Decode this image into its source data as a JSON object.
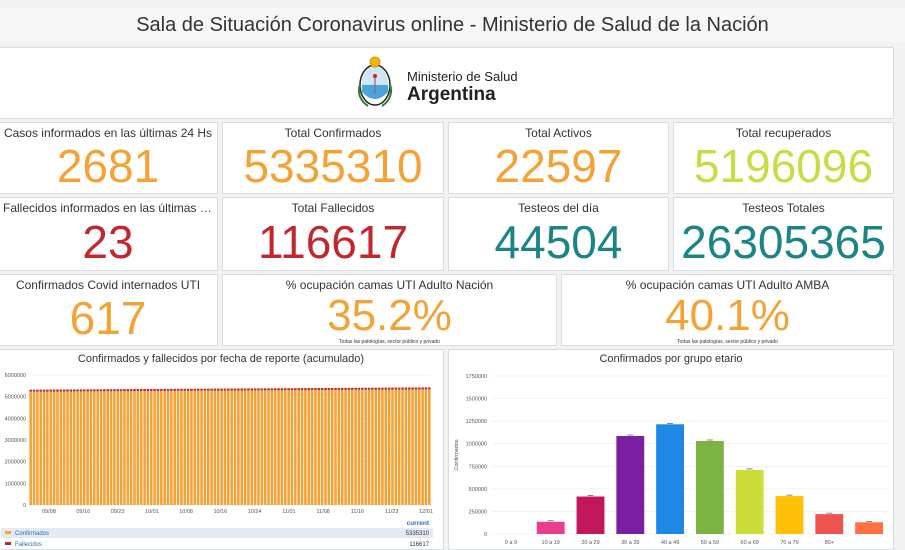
{
  "header": {
    "title": "Sala de Situación Coronavirus online - Ministerio de Salud de la Nación"
  },
  "logo": {
    "line1": "Ministerio de Salud",
    "line2": "Argentina"
  },
  "cards": {
    "casos24": {
      "label": "Casos informados en las últimas 24 Hs",
      "value": "2681",
      "color": "#f4a236"
    },
    "confirmados": {
      "label": "Total Confirmados",
      "value": "5335310",
      "color": "#f4a236"
    },
    "activos": {
      "label": "Total Activos",
      "value": "22597",
      "color": "#f4a236"
    },
    "recuperados": {
      "label": "Total recuperados",
      "value": "5196096",
      "color": "#c9dc45"
    },
    "fallecidos24": {
      "label": "Fallecidos informados en las últimas 24...",
      "value": "23",
      "color": "#c0282e"
    },
    "fallecidos": {
      "label": "Total Fallecidos",
      "value": "116617",
      "color": "#c0282e"
    },
    "testeos_dia": {
      "label": "Testeos del día",
      "value": "44504",
      "color": "#1b8586"
    },
    "testeos_total": {
      "label": "Testeos Totales",
      "value": "26305365",
      "color": "#1b8586"
    },
    "uti": {
      "label": "Confirmados Covid internados UTI",
      "value": "617",
      "color": "#f4a236"
    },
    "ocup_nacion": {
      "label": "% ocupación camas UTI Adulto Nación",
      "value": "35.2%",
      "note": "Todas las patologías, sector público y privado",
      "color": "#f4a236"
    },
    "ocup_amba": {
      "label": "% ocupación camas UTI Adulto AMBA",
      "value": "40.1%",
      "note": "Todas las patologías, sector público y privado",
      "color": "#f4a236"
    }
  },
  "chart_data": [
    {
      "type": "bar",
      "title": "Confirmados y fallecidos por fecha de reporte (acumulado)",
      "y_ticks": [
        "6000000",
        "5000000",
        "4000000",
        "3000000",
        "2000000",
        "1000000",
        "0"
      ],
      "ylim": [
        0,
        6000000
      ],
      "x_ticks": [
        "09/08",
        "09/16",
        "09/23",
        "10/01",
        "10/08",
        "10/16",
        "10/24",
        "11/01",
        "11/08",
        "11/16",
        "11/23",
        "12/01"
      ],
      "series": [
        {
          "name": "Confirmados",
          "current": "5335310",
          "color": "#f4a236",
          "start": 5230000,
          "end": 5335310
        },
        {
          "name": "Fallecidos",
          "current": "116617",
          "color": "#c0282e",
          "start": 115000,
          "end": 116617
        }
      ],
      "legend_header": "current",
      "bar_count": 120
    },
    {
      "type": "bar",
      "title": "Confirmados por grupo etario",
      "ylabel": "Confirmados",
      "y_ticks": [
        "1750000",
        "1500000",
        "1250000",
        "1000000",
        "750000",
        "500000",
        "250000",
        "0"
      ],
      "ylim": [
        0,
        1750000
      ],
      "categories": [
        "0 a 9",
        "10 a 19",
        "20 a 29",
        "30 a 39",
        "40 a 49",
        "50 a 59",
        "60 a 69",
        "70 a 79",
        "80+",
        ""
      ],
      "values": [
        0,
        135000,
        415000,
        1085000,
        1215000,
        1030000,
        710000,
        420000,
        220000,
        130000
      ],
      "colors": [
        "#e74c3c",
        "#e83e8c",
        "#c2185b",
        "#7b1fa2",
        "#1e88e5",
        "#7cb342",
        "#cddc39",
        "#ffc107",
        "#ef5350",
        "#ff7043"
      ]
    }
  ]
}
